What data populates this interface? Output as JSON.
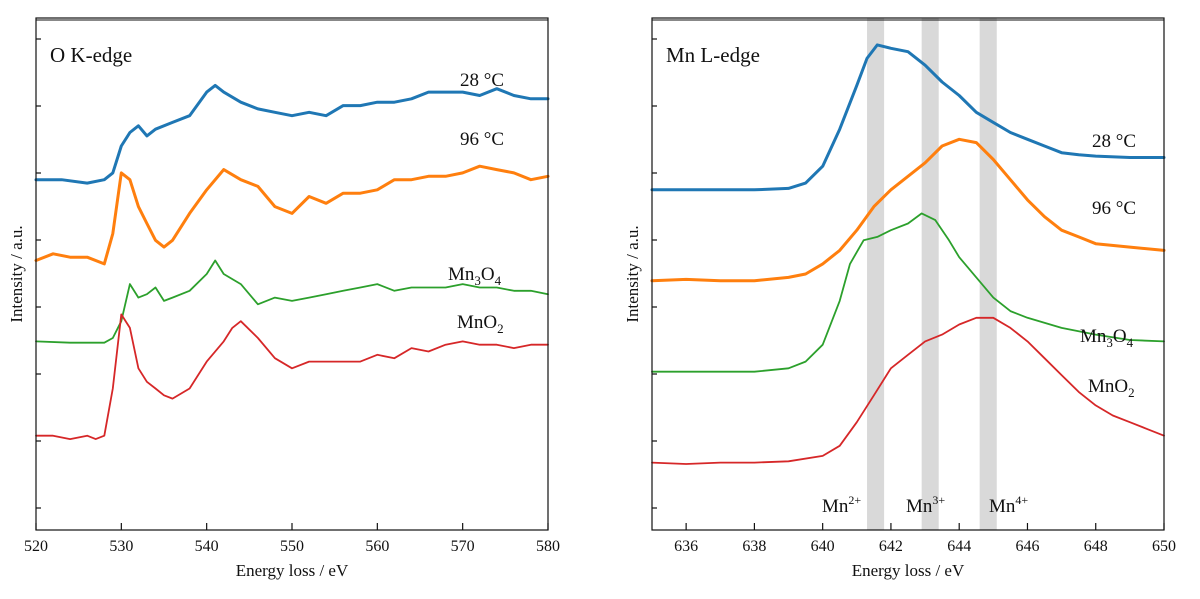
{
  "colors": {
    "blue": "#1f77b4",
    "orange": "#ff7f0e",
    "green": "#2ca02c",
    "red": "#d62728",
    "band": "#d9d9d9",
    "axis": "#111111"
  },
  "chart_data": [
    {
      "type": "line",
      "title": "O K-edge",
      "xlabel": "Energy loss / eV",
      "ylabel": "Intensity / a.u.",
      "xlim": [
        520,
        580
      ],
      "ylim": [
        -0.2,
        7.4
      ],
      "xticks": [
        520,
        530,
        540,
        550,
        560,
        570,
        580
      ],
      "yticks_unlabeled": true,
      "grid": false,
      "series": [
        {
          "name": "28 °C",
          "label_main": "28 °C",
          "label_sub": "",
          "label_tail": "",
          "color": "blue",
          "x": [
            520,
            523,
            526,
            528,
            529,
            530,
            531,
            532,
            533,
            534,
            536,
            538,
            540,
            541,
            542,
            544,
            546,
            548,
            550,
            552,
            554,
            556,
            558,
            560,
            562,
            564,
            566,
            568,
            570,
            572,
            574,
            576,
            578,
            580
          ],
          "y": [
            5.0,
            5.0,
            4.95,
            5.0,
            5.1,
            5.5,
            5.7,
            5.8,
            5.65,
            5.75,
            5.85,
            5.95,
            6.3,
            6.4,
            6.3,
            6.15,
            6.05,
            6.0,
            5.95,
            6.0,
            5.95,
            6.1,
            6.1,
            6.15,
            6.15,
            6.2,
            6.3,
            6.3,
            6.3,
            6.25,
            6.35,
            6.25,
            6.2,
            6.2
          ]
        },
        {
          "name": "96 °C",
          "label_main": "96 °C",
          "label_sub": "",
          "label_tail": "",
          "color": "orange",
          "x": [
            520,
            522,
            524,
            526,
            528,
            529,
            530,
            531,
            532,
            533,
            534,
            535,
            536,
            538,
            540,
            542,
            544,
            546,
            548,
            550,
            552,
            554,
            556,
            558,
            560,
            562,
            564,
            566,
            568,
            570,
            572,
            574,
            576,
            578,
            580
          ],
          "y": [
            3.8,
            3.9,
            3.85,
            3.85,
            3.75,
            4.2,
            5.1,
            5.0,
            4.6,
            4.35,
            4.1,
            4.0,
            4.1,
            4.5,
            4.85,
            5.15,
            5.0,
            4.9,
            4.6,
            4.5,
            4.75,
            4.65,
            4.8,
            4.8,
            4.85,
            5.0,
            5.0,
            5.05,
            5.05,
            5.1,
            5.2,
            5.15,
            5.1,
            5.0,
            5.05
          ]
        },
        {
          "name": "Mn3O4",
          "label_main": "Mn",
          "label_sub": "3",
          "label_tail": "O4",
          "color": "green",
          "x": [
            520,
            524,
            528,
            529,
            530,
            531,
            532,
            533,
            534,
            535,
            536,
            538,
            540,
            541,
            542,
            544,
            546,
            548,
            550,
            552,
            554,
            556,
            558,
            560,
            562,
            564,
            566,
            568,
            570,
            572,
            574,
            576,
            578,
            580
          ],
          "y": [
            2.6,
            2.58,
            2.58,
            2.65,
            2.9,
            3.45,
            3.25,
            3.3,
            3.4,
            3.2,
            3.25,
            3.35,
            3.6,
            3.8,
            3.6,
            3.45,
            3.15,
            3.25,
            3.2,
            3.25,
            3.3,
            3.35,
            3.4,
            3.45,
            3.35,
            3.4,
            3.4,
            3.4,
            3.45,
            3.4,
            3.4,
            3.35,
            3.35,
            3.3
          ]
        },
        {
          "name": "MnO2",
          "label_main": "MnO",
          "label_sub": "2",
          "label_tail": "",
          "color": "red",
          "x": [
            520,
            522,
            524,
            526,
            527,
            528,
            529,
            530,
            531,
            532,
            533,
            534,
            535,
            536,
            538,
            540,
            542,
            543,
            544,
            546,
            548,
            550,
            552,
            554,
            556,
            558,
            560,
            562,
            564,
            566,
            568,
            570,
            572,
            574,
            576,
            578,
            580
          ],
          "y": [
            1.2,
            1.2,
            1.15,
            1.2,
            1.15,
            1.2,
            1.9,
            3.0,
            2.8,
            2.2,
            2.0,
            1.9,
            1.8,
            1.75,
            1.9,
            2.3,
            2.6,
            2.8,
            2.9,
            2.65,
            2.35,
            2.2,
            2.3,
            2.3,
            2.3,
            2.3,
            2.4,
            2.35,
            2.5,
            2.45,
            2.55,
            2.6,
            2.55,
            2.55,
            2.5,
            2.55,
            2.55
          ]
        }
      ]
    },
    {
      "type": "line",
      "title": "Mn L-edge",
      "xlabel": "Energy loss / eV",
      "ylabel": "Intensity / a.u.",
      "xlim": [
        635,
        650
      ],
      "ylim": [
        -0.2,
        7.4
      ],
      "xticks": [
        636,
        638,
        640,
        642,
        644,
        646,
        648,
        650
      ],
      "yticks_unlabeled": true,
      "grid": false,
      "bands": [
        {
          "label_main": "Mn",
          "label_sup": "2+",
          "x_from": 641.3,
          "x_to": 641.8
        },
        {
          "label_main": "Mn",
          "label_sup": "3+",
          "x_from": 642.9,
          "x_to": 643.4
        },
        {
          "label_main": "Mn",
          "label_sup": "4+",
          "x_from": 644.6,
          "x_to": 645.1
        }
      ],
      "series": [
        {
          "name": "28 °C",
          "label_main": "28 °C",
          "label_sub": "",
          "label_tail": "",
          "color": "blue",
          "x": [
            635,
            636,
            637,
            638,
            639,
            639.5,
            640,
            640.5,
            641,
            641.3,
            641.6,
            642,
            642.5,
            643,
            643.5,
            644,
            644.5,
            645,
            645.5,
            646,
            646.5,
            647,
            647.5,
            648,
            649,
            650
          ],
          "y": [
            4.85,
            4.85,
            4.85,
            4.85,
            4.87,
            4.95,
            5.2,
            5.75,
            6.4,
            6.8,
            7.0,
            6.95,
            6.9,
            6.7,
            6.45,
            6.25,
            6.0,
            5.85,
            5.7,
            5.6,
            5.5,
            5.4,
            5.37,
            5.35,
            5.33,
            5.33
          ]
        },
        {
          "name": "96 °C",
          "label_main": "96 °C",
          "label_sub": "",
          "label_tail": "",
          "color": "orange",
          "x": [
            635,
            636,
            637,
            638,
            639,
            639.5,
            640,
            640.5,
            641,
            641.5,
            642,
            642.5,
            643,
            643.5,
            644,
            644.5,
            645,
            645.5,
            646,
            646.5,
            647,
            647.5,
            648,
            649,
            650
          ],
          "y": [
            3.5,
            3.52,
            3.5,
            3.5,
            3.55,
            3.6,
            3.75,
            3.95,
            4.25,
            4.6,
            4.85,
            5.05,
            5.25,
            5.5,
            5.6,
            5.55,
            5.3,
            5.0,
            4.7,
            4.45,
            4.25,
            4.15,
            4.05,
            4.0,
            3.95
          ]
        },
        {
          "name": "Mn3O4",
          "label_main": "Mn",
          "label_sub": "3",
          "label_tail": "O4",
          "color": "green",
          "x": [
            635,
            636,
            637,
            638,
            639,
            639.5,
            640,
            640.5,
            640.8,
            641.2,
            641.6,
            642,
            642.5,
            642.9,
            643.3,
            643.7,
            644,
            644.5,
            645,
            645.5,
            646,
            647,
            648,
            649,
            650
          ],
          "y": [
            2.15,
            2.15,
            2.15,
            2.15,
            2.2,
            2.3,
            2.55,
            3.2,
            3.75,
            4.1,
            4.15,
            4.25,
            4.35,
            4.5,
            4.4,
            4.1,
            3.85,
            3.55,
            3.25,
            3.05,
            2.95,
            2.8,
            2.7,
            2.62,
            2.6
          ]
        },
        {
          "name": "MnO2",
          "label_main": "MnO",
          "label_sub": "2",
          "label_tail": "",
          "color": "red",
          "x": [
            635,
            636,
            637,
            638,
            639,
            640,
            640.5,
            641,
            641.5,
            642,
            642.5,
            643,
            643.5,
            644,
            644.5,
            645,
            645.5,
            646,
            646.5,
            647,
            647.5,
            648,
            648.5,
            649,
            649.5,
            650
          ],
          "y": [
            0.8,
            0.78,
            0.8,
            0.8,
            0.82,
            0.9,
            1.05,
            1.4,
            1.8,
            2.2,
            2.4,
            2.6,
            2.7,
            2.85,
            2.95,
            2.95,
            2.8,
            2.6,
            2.35,
            2.1,
            1.85,
            1.65,
            1.5,
            1.4,
            1.3,
            1.2
          ]
        }
      ]
    }
  ]
}
